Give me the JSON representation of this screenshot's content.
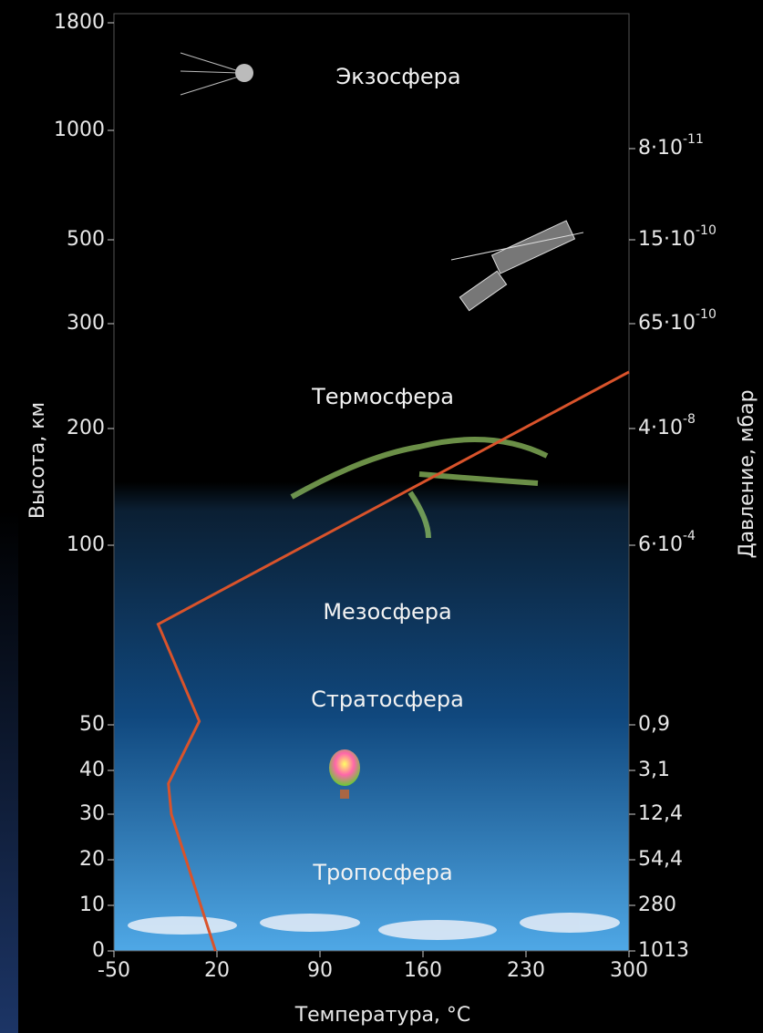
{
  "chart_data": {
    "type": "line",
    "xlabel": "Температура, °C",
    "ylabel": "Высота, км",
    "y2label": "Давление, мбар",
    "annotations": [
      "Экзосфера",
      "Термосфера",
      "Мезосфера",
      "Стратосфера",
      "Тропосфера"
    ],
    "xlim": [
      -50,
      300
    ],
    "xticks": [
      -50,
      20,
      90,
      160,
      230,
      300
    ],
    "ylim": [
      0,
      1800
    ],
    "yticks": [
      0,
      10,
      20,
      30,
      40,
      50,
      100,
      200,
      300,
      500,
      1000,
      1800
    ],
    "y2ticks": [
      {
        "value": 1013,
        "label": "1013"
      },
      {
        "value": 280,
        "label": "280"
      },
      {
        "value": 54.4,
        "label": "54,4"
      },
      {
        "value": 12.4,
        "label": "12,4"
      },
      {
        "value": 3.1,
        "label": "3,1"
      },
      {
        "value": 0.9,
        "label": "0,9"
      },
      {
        "value": 0.0006,
        "label": "6·10",
        "exponent": "-4"
      },
      {
        "value": 4e-08,
        "label": "4·10",
        "exponent": "-8"
      },
      {
        "value": 6.5e-09,
        "label": "65·10",
        "exponent": "-10"
      },
      {
        "value": 1.5e-09,
        "label": "15·10",
        "exponent": "-10"
      },
      {
        "value": 8e-11,
        "label": "8·10",
        "exponent": "-11"
      }
    ],
    "series": [
      {
        "name": "Температура",
        "color": "#d9532b",
        "x": [
          19,
          -11,
          -13,
          8,
          -20,
          300
        ],
        "values": [
          0,
          30,
          37,
          51,
          78,
          254
        ]
      }
    ]
  }
}
